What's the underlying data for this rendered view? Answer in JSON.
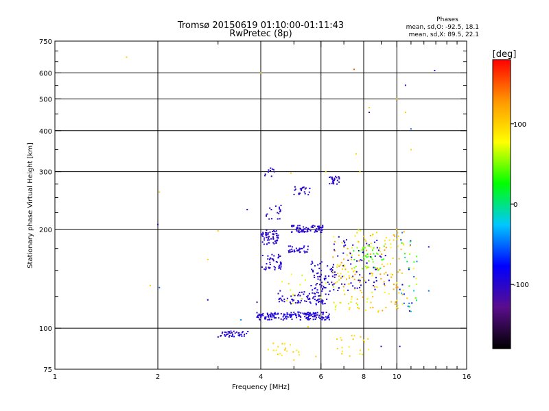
{
  "chart_data": {
    "type": "scatter",
    "title": "Tromsø 20150619 01:10:00-01:11:43",
    "subtitle": "RwPretec (8p)",
    "xlabel": "Frequency [MHz]",
    "ylabel": "Stationary phase Virtual Height [km]",
    "x_scale": "log",
    "y_scale": "log",
    "xlim": [
      1,
      16
    ],
    "ylim": [
      75,
      750
    ],
    "x_ticks": [
      1,
      2,
      4,
      6,
      8,
      10,
      16
    ],
    "y_ticks": [
      75,
      100,
      200,
      300,
      400,
      500,
      600,
      750
    ],
    "grid": true,
    "phases": {
      "title": "Phases",
      "line_o": "mean, sd,O: -92.5, 18.1",
      "line_x": "mean, sd,X:  89.5, 22.1"
    },
    "colorbar": {
      "label": "[deg]",
      "range": [
        -180,
        180
      ],
      "ticks": [
        100,
        0,
        -100
      ],
      "colors": [
        "#000000",
        "#5a0d8c",
        "#0000ff",
        "#00c8ff",
        "#00ff00",
        "#ffff00",
        "#ff9600",
        "#ff0000"
      ]
    },
    "clusters": [
      {
        "x": [
          3.0,
          3.7
        ],
        "y": [
          94,
          98
        ],
        "n": 40,
        "phase": [
          -110,
          -85
        ]
      },
      {
        "x": [
          3.9,
          6.4
        ],
        "y": [
          106,
          112
        ],
        "n": 170,
        "phase": [
          -110,
          -80
        ]
      },
      {
        "x": [
          4.5,
          6.4
        ],
        "y": [
          118,
          130
        ],
        "n": 80,
        "phase": [
          -110,
          -85
        ]
      },
      {
        "x": [
          5.6,
          6.6
        ],
        "y": [
          130,
          160
        ],
        "n": 60,
        "phase": [
          -110,
          -80
        ]
      },
      {
        "x": [
          4.0,
          4.5
        ],
        "y": [
          180,
          200
        ],
        "n": 60,
        "phase": [
          -110,
          -90
        ]
      },
      {
        "x": [
          4.0,
          4.6
        ],
        "y": [
          150,
          168
        ],
        "n": 45,
        "phase": [
          -110,
          -90
        ]
      },
      {
        "x": [
          4.9,
          6.1
        ],
        "y": [
          196,
          206
        ],
        "n": 70,
        "phase": [
          -110,
          -90
        ]
      },
      {
        "x": [
          4.8,
          5.5
        ],
        "y": [
          170,
          178
        ],
        "n": 35,
        "phase": [
          -110,
          -90
        ]
      },
      {
        "x": [
          5.0,
          5.6
        ],
        "y": [
          255,
          270
        ],
        "n": 22,
        "phase": [
          -110,
          -90
        ]
      },
      {
        "x": [
          6.3,
          6.8
        ],
        "y": [
          275,
          290
        ],
        "n": 25,
        "phase": [
          -110,
          -90
        ]
      },
      {
        "x": [
          4.1,
          4.4
        ],
        "y": [
          290,
          308
        ],
        "n": 10,
        "phase": [
          -110,
          -90
        ]
      },
      {
        "x": [
          4.1,
          4.6
        ],
        "y": [
          215,
          240
        ],
        "n": 18,
        "phase": [
          -110,
          -90
        ]
      },
      {
        "x": [
          6.5,
          10.5
        ],
        "y": [
          112,
          200
        ],
        "n": 160,
        "phase": [
          70,
          130
        ]
      },
      {
        "x": [
          6.5,
          9.5
        ],
        "y": [
          130,
          190
        ],
        "n": 70,
        "phase": [
          -110,
          -80
        ]
      },
      {
        "x": [
          7.4,
          9.2
        ],
        "y": [
          150,
          180
        ],
        "n": 40,
        "phase": [
          20,
          60
        ]
      },
      {
        "x": [
          4.2,
          5.2
        ],
        "y": [
          82,
          90
        ],
        "n": 18,
        "phase": [
          80,
          110
        ]
      },
      {
        "x": [
          6.4,
          8.4
        ],
        "y": [
          82,
          95
        ],
        "n": 20,
        "phase": [
          80,
          110
        ]
      },
      {
        "x": [
          4.6,
          8.2
        ],
        "y": [
          115,
          150
        ],
        "n": 30,
        "phase": [
          60,
          110
        ]
      },
      {
        "x": [
          10.0,
          11.5
        ],
        "y": [
          110,
          200
        ],
        "n": 40,
        "phase": [
          -110,
          110
        ]
      }
    ],
    "points": [
      {
        "x": 1.62,
        "y": 670,
        "phase": 100
      },
      {
        "x": 4.0,
        "y": 600,
        "phase": 100
      },
      {
        "x": 7.5,
        "y": 615,
        "phase": 150
      },
      {
        "x": 12.9,
        "y": 610,
        "phase": -100
      },
      {
        "x": 10.6,
        "y": 550,
        "phase": -100
      },
      {
        "x": 8.3,
        "y": 470,
        "phase": 100
      },
      {
        "x": 8.3,
        "y": 455,
        "phase": -120
      },
      {
        "x": 10.6,
        "y": 455,
        "phase": 100
      },
      {
        "x": 10.0,
        "y": 500,
        "phase": 100
      },
      {
        "x": 11.0,
        "y": 405,
        "phase": -50
      },
      {
        "x": 11.0,
        "y": 350,
        "phase": 100
      },
      {
        "x": 7.6,
        "y": 340,
        "phase": 100
      },
      {
        "x": 2.02,
        "y": 260,
        "phase": 100
      },
      {
        "x": 2.0,
        "y": 207,
        "phase": -100
      },
      {
        "x": 3.65,
        "y": 230,
        "phase": -100
      },
      {
        "x": 3.0,
        "y": 198,
        "phase": 100
      },
      {
        "x": 2.8,
        "y": 162,
        "phase": 100
      },
      {
        "x": 1.9,
        "y": 135,
        "phase": 100
      },
      {
        "x": 2.02,
        "y": 133,
        "phase": -50
      },
      {
        "x": 2.8,
        "y": 122,
        "phase": -100
      },
      {
        "x": 3.5,
        "y": 106,
        "phase": -40
      },
      {
        "x": 3.9,
        "y": 120,
        "phase": -120
      },
      {
        "x": 12.4,
        "y": 177,
        "phase": -100
      },
      {
        "x": 10.2,
        "y": 88,
        "phase": -100
      },
      {
        "x": 9.0,
        "y": 88,
        "phase": -100
      },
      {
        "x": 5.0,
        "y": 80,
        "phase": 100
      },
      {
        "x": 5.8,
        "y": 82,
        "phase": 100
      },
      {
        "x": 4.9,
        "y": 297,
        "phase": 100
      },
      {
        "x": 6.2,
        "y": 300,
        "phase": 100
      },
      {
        "x": 7.8,
        "y": 300,
        "phase": 100
      },
      {
        "x": 12.4,
        "y": 130,
        "phase": -50
      },
      {
        "x": 5.5,
        "y": 101,
        "phase": 100
      }
    ]
  }
}
